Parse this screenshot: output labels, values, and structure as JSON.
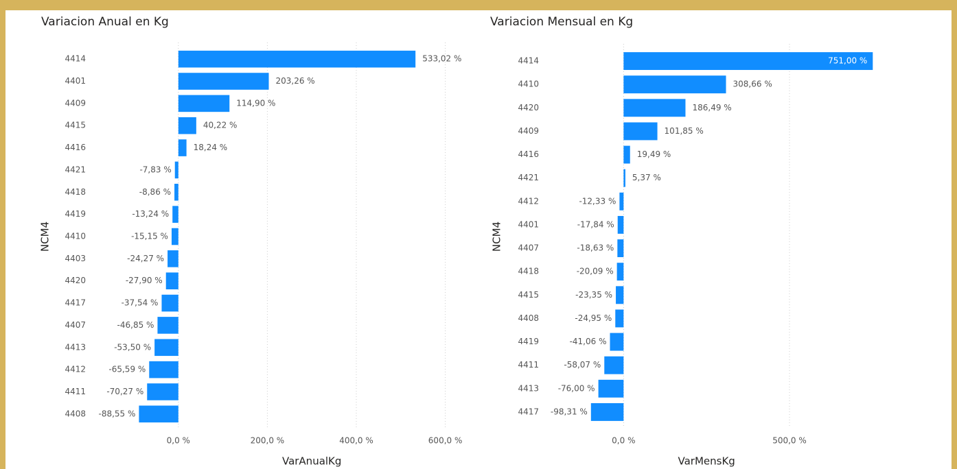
{
  "chart_data": [
    {
      "type": "bar",
      "orientation": "horizontal",
      "title": "Variacion Anual en Kg",
      "xlabel": "VarAnualKg",
      "ylabel": "NCM4",
      "color": "#118dff",
      "grid": true,
      "categories": [
        "4414",
        "4401",
        "4409",
        "4415",
        "4416",
        "4421",
        "4418",
        "4419",
        "4410",
        "4403",
        "4420",
        "4417",
        "4407",
        "4413",
        "4412",
        "4411",
        "4408"
      ],
      "values": [
        533.02,
        203.26,
        114.9,
        40.22,
        18.24,
        -7.83,
        -8.86,
        -13.24,
        -15.15,
        -24.27,
        -27.9,
        -37.54,
        -46.85,
        -53.5,
        -65.59,
        -70.27,
        -88.55
      ],
      "value_labels": [
        "533,02 %",
        "203,26 %",
        "114,90 %",
        "40,22 %",
        "18,24 %",
        "-7,83 %",
        "-8,86 %",
        "-13,24 %",
        "-15,15 %",
        "-24,27 %",
        "-27,90 %",
        "-37,54 %",
        "-46,85 %",
        "-53,50 %",
        "-65,59 %",
        "-70,27 %",
        "-88,55 %"
      ],
      "xlim": [
        -100,
        650
      ],
      "xticks": [
        {
          "value": 0,
          "label": "0,0 %"
        },
        {
          "value": 200,
          "label": "200,0 %"
        },
        {
          "value": 400,
          "label": "400,0 %"
        },
        {
          "value": 600,
          "label": "600,0 %"
        }
      ]
    },
    {
      "type": "bar",
      "orientation": "horizontal",
      "title": "Variacion Mensual en Kg",
      "xlabel": "VarMensKg",
      "ylabel": "NCM4",
      "color": "#118dff",
      "grid": true,
      "categories": [
        "4414",
        "4410",
        "4420",
        "4409",
        "4416",
        "4421",
        "4412",
        "4401",
        "4407",
        "4418",
        "4415",
        "4408",
        "4419",
        "4411",
        "4413",
        "4417"
      ],
      "values": [
        751.0,
        308.66,
        186.49,
        101.85,
        19.49,
        5.37,
        -12.33,
        -17.84,
        -18.63,
        -20.09,
        -23.35,
        -24.95,
        -41.06,
        -58.07,
        -76.0,
        -98.31
      ],
      "value_labels": [
        "751,00 %",
        "308,66 %",
        "186,49 %",
        "101,85 %",
        "19,49 %",
        "5,37 %",
        "-12,33 %",
        "-17,84 %",
        "-18,63 %",
        "-20,09 %",
        "-23,35 %",
        "-24,95 %",
        "-41,06 %",
        "-58,07 %",
        "-76,00 %",
        "-98,31 %"
      ],
      "xlim": [
        -100,
        800
      ],
      "xticks": [
        {
          "value": 0,
          "label": "0,0 %"
        },
        {
          "value": 500,
          "label": "500,0 %"
        }
      ]
    }
  ]
}
